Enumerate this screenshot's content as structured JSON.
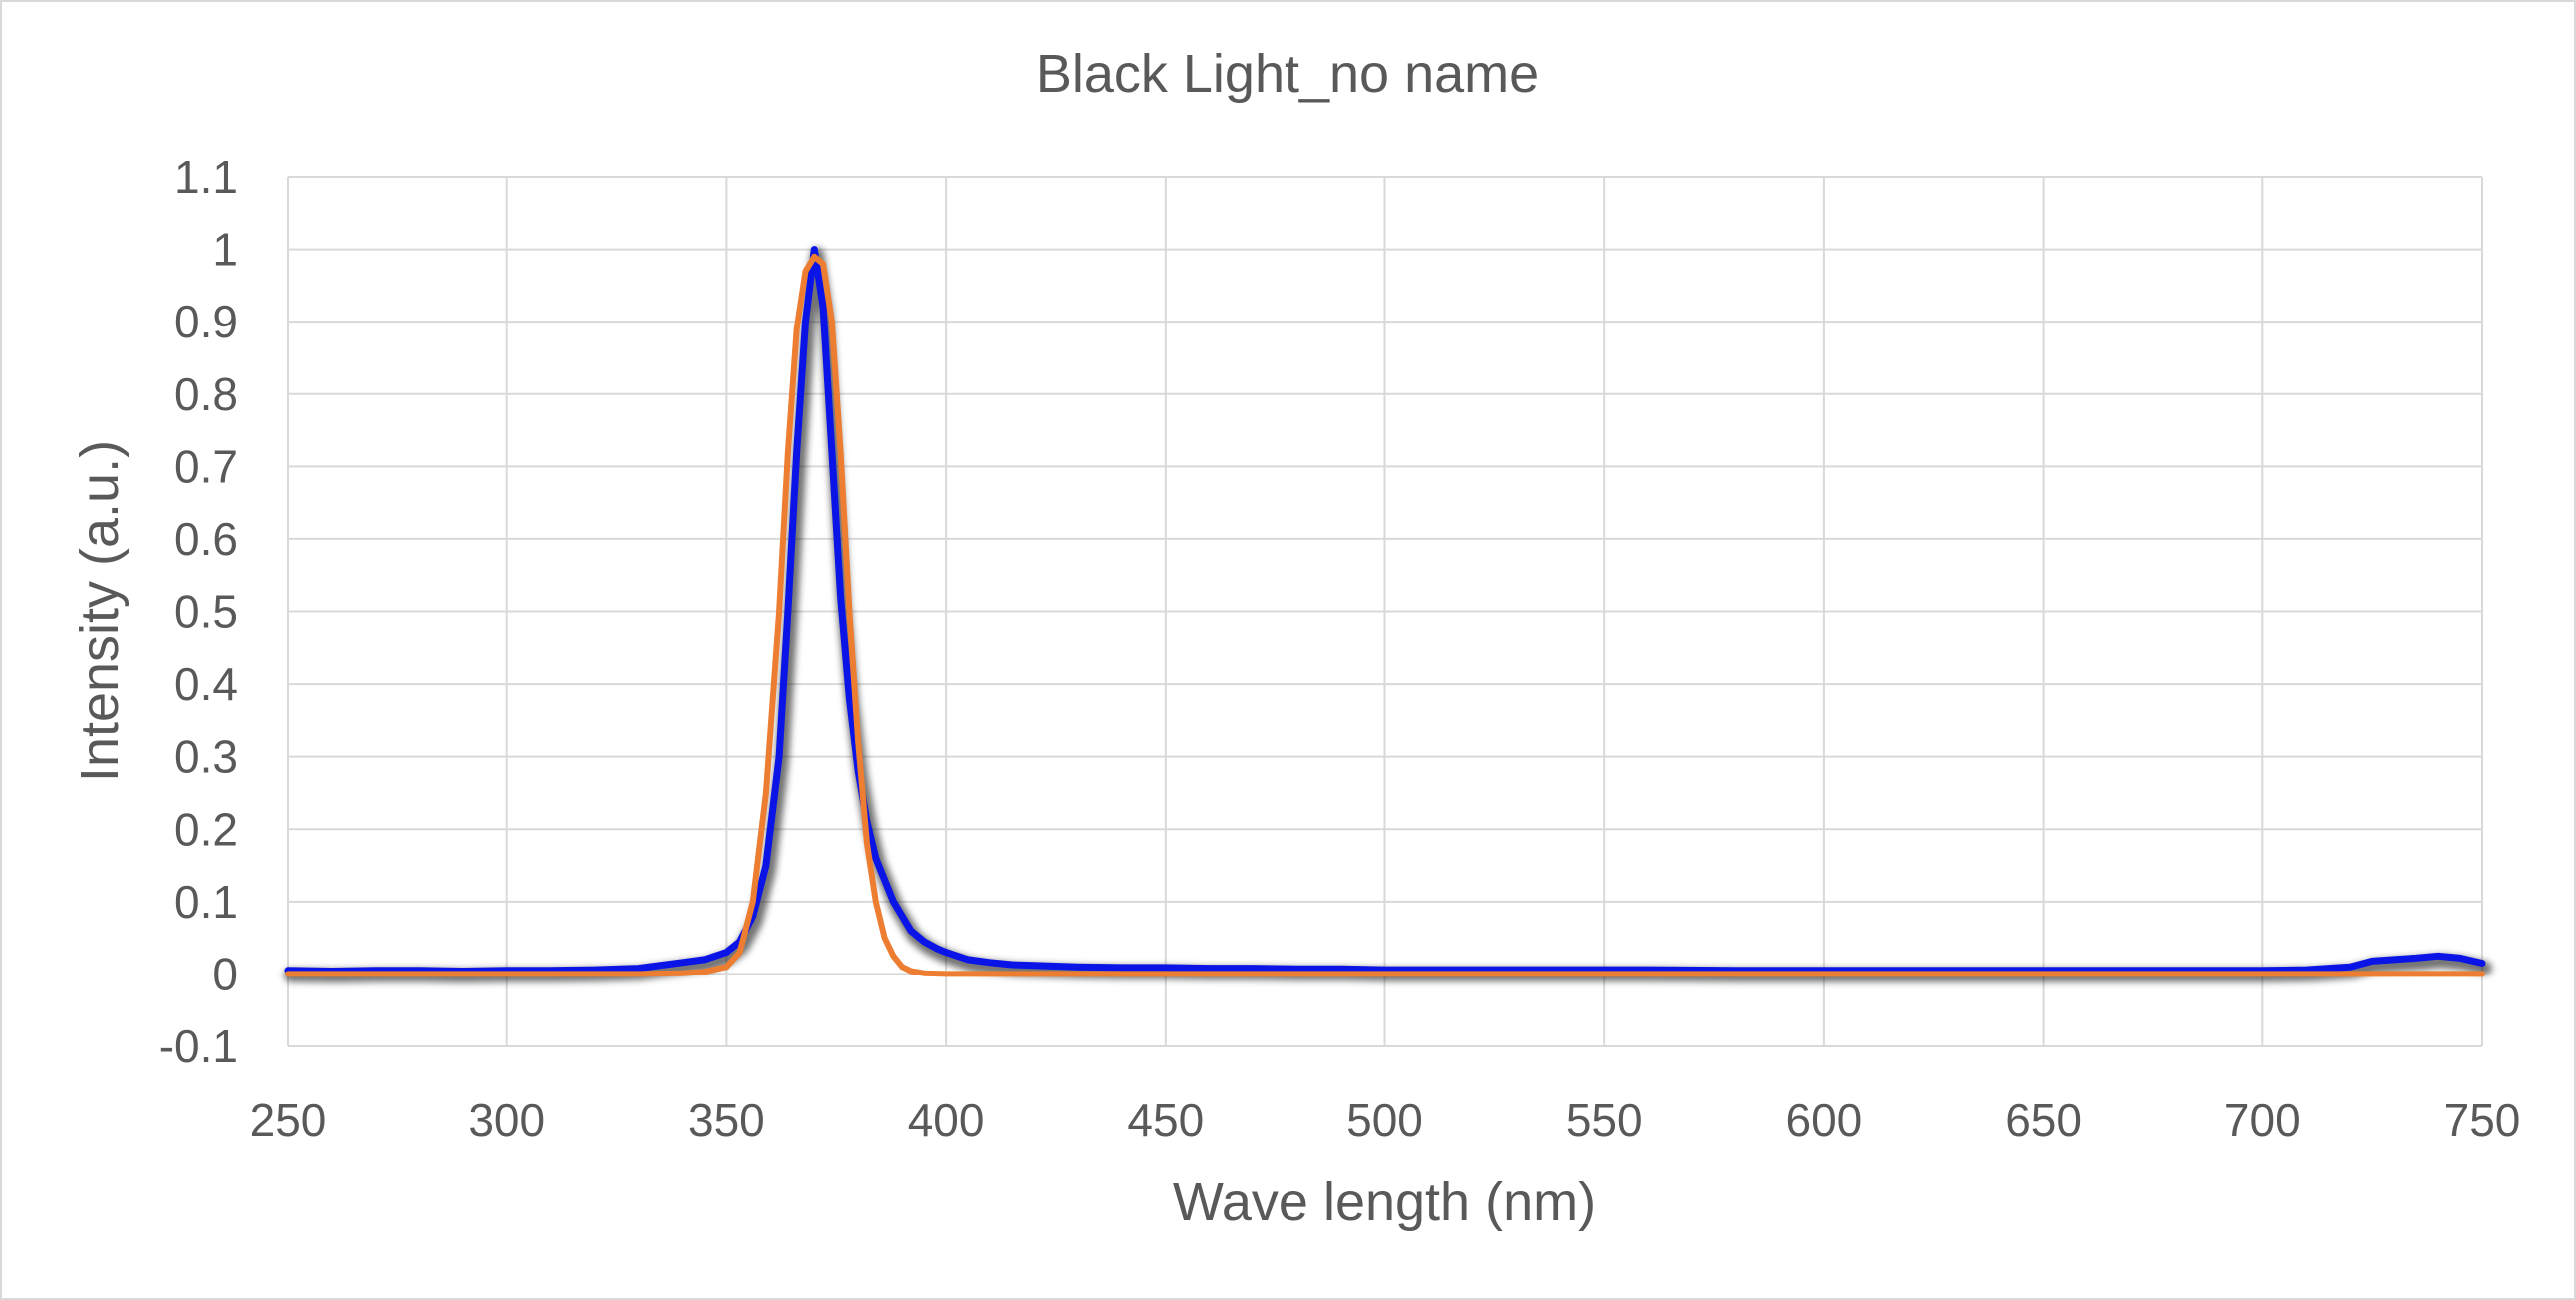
{
  "chart_data": {
    "type": "line",
    "title": "Black Light_no name",
    "xlabel": "Wave length (nm)",
    "ylabel": "Intensity (a.u.)",
    "xlim": [
      250,
      750
    ],
    "ylim": [
      -0.1,
      1.1
    ],
    "x_ticks": [
      "250",
      "300",
      "350",
      "400",
      "450",
      "500",
      "550",
      "600",
      "650",
      "700",
      "750"
    ],
    "y_ticks": [
      "-0.1",
      "0",
      "0.1",
      "0.2",
      "0.3",
      "0.4",
      "0.5",
      "0.6",
      "0.7",
      "0.8",
      "0.9",
      "1",
      "1.1"
    ],
    "grid": true,
    "legend": "none",
    "series": [
      {
        "color": "#0a14e6",
        "shadow": true,
        "x": [
          250,
          260,
          270,
          280,
          290,
          300,
          310,
          320,
          330,
          335,
          340,
          345,
          350,
          353,
          356,
          359,
          362,
          364,
          366,
          368,
          370,
          372,
          374,
          376,
          378,
          380,
          382,
          384,
          386,
          388,
          390,
          392,
          395,
          398,
          400,
          405,
          410,
          415,
          420,
          430,
          440,
          450,
          460,
          470,
          480,
          490,
          500,
          520,
          540,
          560,
          580,
          600,
          620,
          640,
          660,
          680,
          700,
          710,
          720,
          725,
          730,
          735,
          740,
          745,
          750
        ],
        "y": [
          0.005,
          0.004,
          0.005,
          0.005,
          0.004,
          0.005,
          0.005,
          0.006,
          0.008,
          0.012,
          0.016,
          0.02,
          0.03,
          0.045,
          0.08,
          0.15,
          0.3,
          0.5,
          0.72,
          0.9,
          1.0,
          0.92,
          0.72,
          0.52,
          0.38,
          0.28,
          0.21,
          0.16,
          0.13,
          0.1,
          0.08,
          0.06,
          0.045,
          0.035,
          0.03,
          0.02,
          0.016,
          0.013,
          0.012,
          0.01,
          0.009,
          0.009,
          0.008,
          0.008,
          0.007,
          0.007,
          0.006,
          0.006,
          0.006,
          0.006,
          0.005,
          0.005,
          0.005,
          0.005,
          0.005,
          0.005,
          0.005,
          0.006,
          0.01,
          0.018,
          0.02,
          0.022,
          0.025,
          0.022,
          0.015
        ]
      },
      {
        "color": "#ed7d31",
        "shadow": false,
        "x": [
          250,
          300,
          330,
          340,
          345,
          350,
          353,
          356,
          359,
          362,
          364,
          366,
          368,
          370,
          372,
          374,
          376,
          378,
          380,
          382,
          384,
          386,
          388,
          390,
          392,
          395,
          400,
          450,
          500,
          600,
          700,
          720,
          730,
          750
        ],
        "y": [
          0.0,
          0.0,
          0.0,
          0.001,
          0.003,
          0.01,
          0.03,
          0.1,
          0.25,
          0.5,
          0.72,
          0.89,
          0.97,
          0.99,
          0.98,
          0.9,
          0.72,
          0.5,
          0.32,
          0.18,
          0.1,
          0.05,
          0.025,
          0.01,
          0.004,
          0.001,
          0.0,
          0.0,
          0.0,
          0.0,
          0.0,
          0.0,
          0.0,
          0.0
        ]
      }
    ]
  }
}
